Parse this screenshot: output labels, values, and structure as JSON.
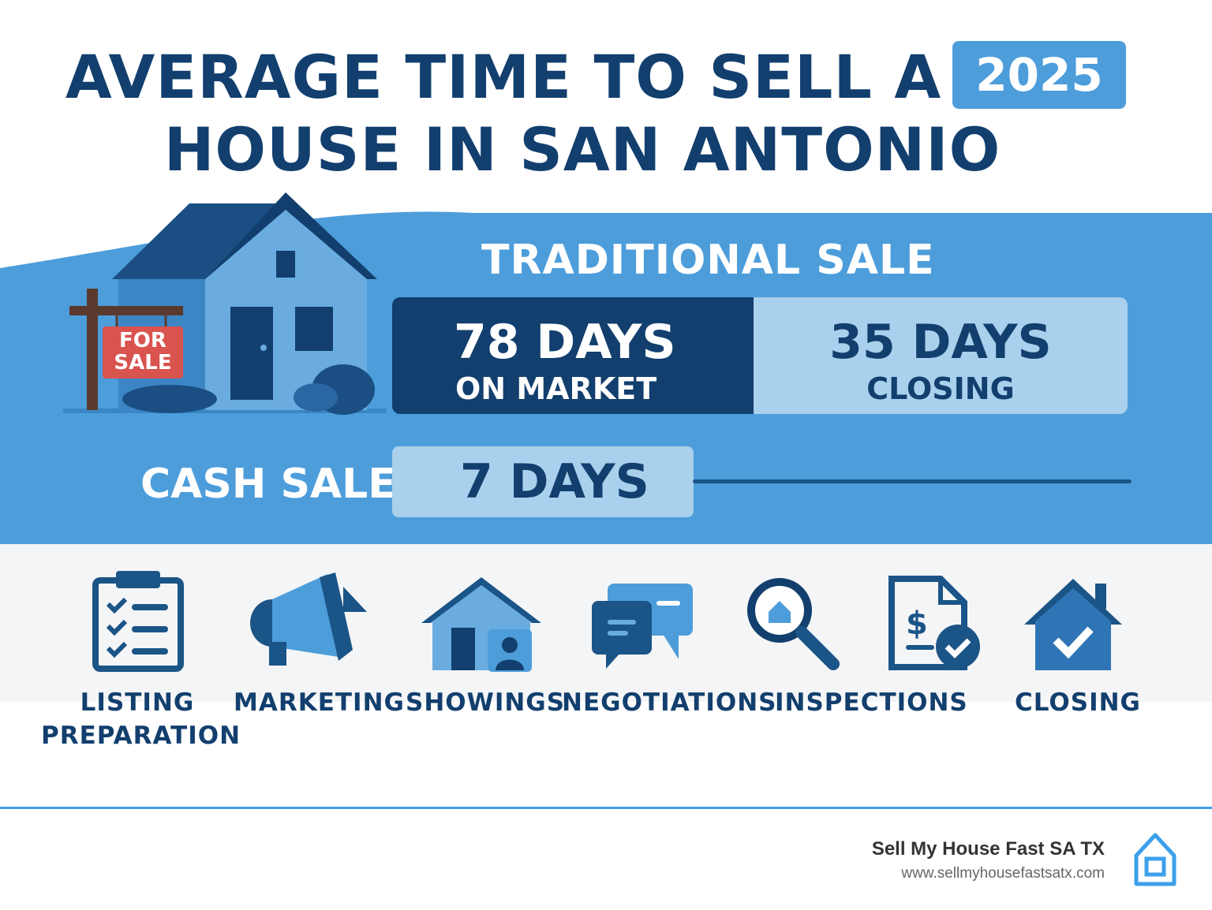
{
  "title": {
    "line1": "AVERAGE TIME TO SELL A",
    "line2": "HOUSE IN SAN ANTONIO",
    "year": "2025"
  },
  "sign": {
    "line1": "FOR",
    "line2": "SALE"
  },
  "traditional": {
    "label": "TRADITIONAL SALE",
    "market_value": "78 DAYS",
    "market_label": "ON MARKET",
    "market_days": 78,
    "closing_value": "35 DAYS",
    "closing_label": "CLOSING",
    "closing_days": 35
  },
  "cash": {
    "label": "CASH SALE",
    "value": "7 DAYS",
    "days": 7
  },
  "steps": [
    {
      "label1": "LISTING",
      "label2": "PREPARATION",
      "icon": "clipboard-checklist-icon"
    },
    {
      "label1": "MARKETING",
      "label2": "",
      "icon": "megaphone-icon"
    },
    {
      "label1": "SHOWINGS",
      "label2": "",
      "icon": "house-person-icon"
    },
    {
      "label1": "NEGOTIATIONS",
      "label2": "",
      "icon": "chat-bubbles-icon"
    },
    {
      "label1": "INSPECTIONS",
      "label2": "",
      "icon": "magnifier-house-icon"
    },
    {
      "label1": "CLOSING",
      "label2": "",
      "icon": "house-check-icon"
    }
  ],
  "footer": {
    "company": "Sell My House Fast SA TX",
    "url": "www.sellmyhousefastsatx.com"
  },
  "colors": {
    "navy": "#123f6e",
    "blue": "#4d9ddb",
    "light": "#a9d0ec",
    "accent": "#3da0ea",
    "sign_red": "#d9534f"
  }
}
